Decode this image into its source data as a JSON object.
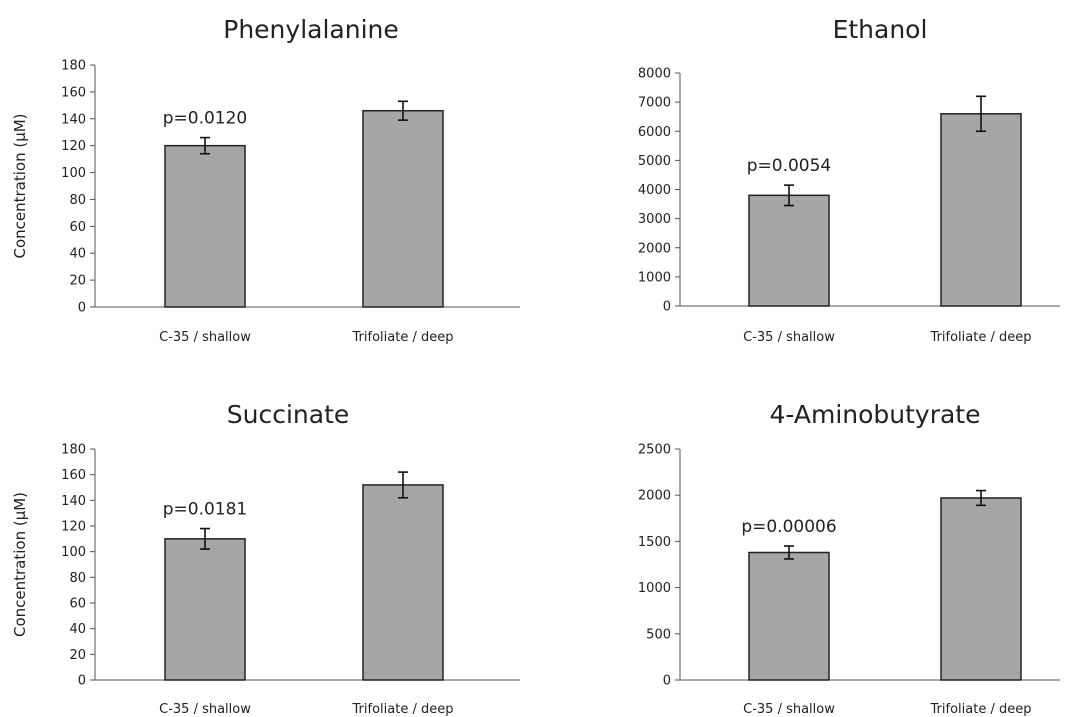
{
  "chart_data": [
    {
      "type": "bar",
      "title": "Phenylalanine",
      "ylabel": "Concentration (µM)",
      "categories": [
        "C-35 / shallow",
        "Trifoliate / deep"
      ],
      "values": [
        120,
        146
      ],
      "errors": [
        6,
        7
      ],
      "ylim": [
        0,
        180
      ],
      "yticks": [
        0,
        20,
        40,
        60,
        80,
        100,
        120,
        140,
        160,
        180
      ],
      "annotation": "p=0.0120",
      "bar_color": "#a6a6a6"
    },
    {
      "type": "bar",
      "title": "Ethanol",
      "ylabel": "",
      "categories": [
        "C-35 / shallow",
        "Trifoliate / deep"
      ],
      "values": [
        3800,
        6600
      ],
      "errors": [
        350,
        600
      ],
      "ylim": [
        0,
        8000
      ],
      "yticks": [
        0,
        1000,
        2000,
        3000,
        4000,
        5000,
        6000,
        7000,
        8000
      ],
      "annotation": "p=0.0054",
      "bar_color": "#a6a6a6"
    },
    {
      "type": "bar",
      "title": "Succinate",
      "ylabel": "Concentration (µM)",
      "categories": [
        "C-35 / shallow",
        "Trifoliate / deep"
      ],
      "values": [
        110,
        152
      ],
      "errors": [
        8,
        10
      ],
      "ylim": [
        0,
        180
      ],
      "yticks": [
        0,
        20,
        40,
        60,
        80,
        100,
        120,
        140,
        160,
        180
      ],
      "annotation": "p=0.0181",
      "bar_color": "#a6a6a6"
    },
    {
      "type": "bar",
      "title": "4-Aminobutyrate",
      "ylabel": "",
      "categories": [
        "C-35 / shallow",
        "Trifoliate / deep"
      ],
      "values": [
        1380,
        1970
      ],
      "errors": [
        70,
        80
      ],
      "ylim": [
        0,
        2500
      ],
      "yticks": [
        0,
        500,
        1000,
        1500,
        2000,
        2500
      ],
      "annotation": "p=0.00006",
      "bar_color": "#a6a6a6"
    }
  ]
}
